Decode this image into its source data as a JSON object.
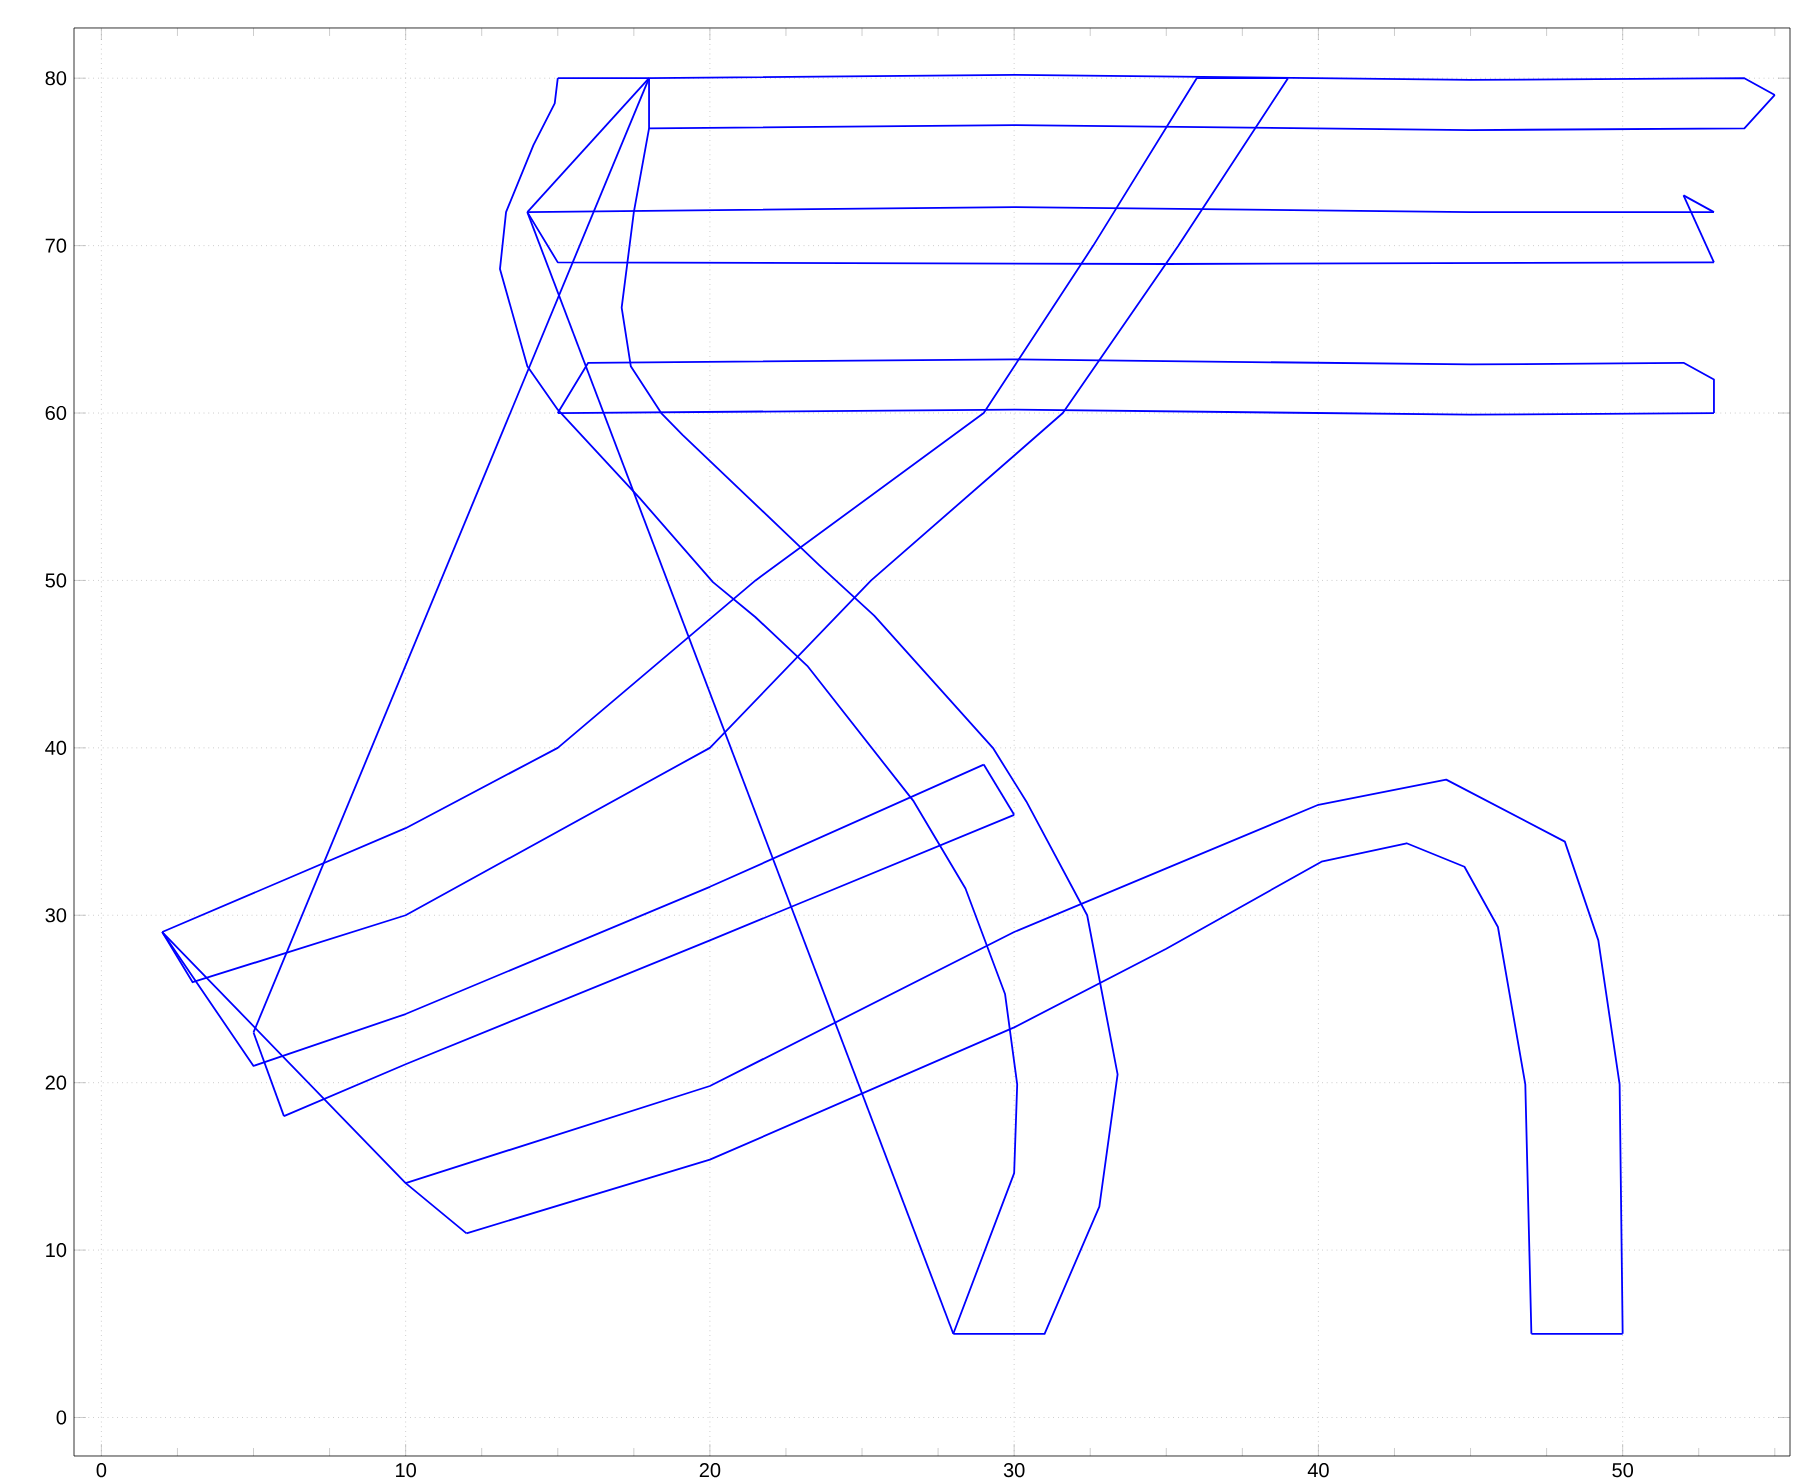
{
  "chart_data": {
    "type": "line",
    "color": "#0000ff",
    "marker": "none",
    "line_style": "solid",
    "grid": true,
    "xlim": [
      -0.9,
      55.5
    ],
    "ylim": [
      -2.3,
      83
    ],
    "xticks": [
      0,
      {
        "value": 2.5,
        "label": null
      },
      {
        "value": 5,
        "label": null
      },
      {
        "value": 7.5,
        "label": null
      },
      10,
      {
        "value": 12.5,
        "label": null
      },
      {
        "value": 15,
        "label": null
      },
      {
        "value": 17.5,
        "label": null
      },
      20,
      {
        "value": 22.5,
        "label": null
      },
      {
        "value": 25,
        "label": null
      },
      {
        "value": 27.5,
        "label": null
      },
      30,
      {
        "value": 32.5,
        "label": null
      },
      {
        "value": 35,
        "label": null
      },
      {
        "value": 37.5,
        "label": null
      },
      40,
      {
        "value": 42.5,
        "label": null
      },
      {
        "value": 45,
        "label": null
      },
      {
        "value": 47.5,
        "label": null
      },
      50,
      {
        "value": 52.5,
        "label": null
      },
      {
        "value": 55,
        "label": null
      }
    ],
    "yticks": [
      0,
      10,
      20,
      30,
      40,
      50,
      60,
      70,
      80
    ],
    "series": [
      {
        "x": [
          15,
          18,
          30,
          45,
          54,
          55
        ],
        "values": [
          80,
          80,
          80.2,
          79.9,
          80,
          79
        ]
      },
      {
        "x": [
          18,
          18,
          30,
          45,
          54,
          55
        ],
        "values": [
          80,
          77,
          77.2,
          76.9,
          77,
          79
        ]
      },
      {
        "x": [
          28,
          30.0,
          30.1,
          29.7,
          28.4,
          26.7,
          23.2,
          21.5,
          20.1,
          17.7,
          15.0,
          14.0,
          13.1,
          13.3,
          14.2,
          14.9,
          15
        ],
        "values": [
          5,
          14.6,
          19.9,
          25.3,
          31.6,
          36.8,
          44.9,
          47.8,
          49.9,
          54.9,
          60.2,
          62.8,
          68.6,
          72,
          76,
          78.5,
          80
        ]
      },
      {
        "x": [
          28,
          31,
          32.8,
          33.4,
          32.4,
          30.4,
          29.3,
          25.4,
          23.6,
          19.1,
          18.4,
          17.4,
          17.1,
          17.5,
          18
        ],
        "values": [
          5,
          5,
          12.6,
          20.5,
          30,
          36.8,
          40,
          47.9,
          50.9,
          58.7,
          60,
          62.8,
          66.3,
          72,
          77
        ]
      },
      {
        "x": [
          14,
          30,
          45,
          53
        ],
        "values": [
          72,
          72.3,
          72.0,
          72
        ]
      },
      {
        "x": [
          52,
          53
        ],
        "values": [
          73,
          72
        ]
      },
      {
        "x": [
          52,
          53
        ],
        "values": [
          73,
          69
        ]
      },
      {
        "x": [
          14,
          15,
          35,
          53
        ],
        "values": [
          72,
          69,
          68.9,
          69
        ]
      },
      {
        "x": [
          14,
          18
        ],
        "values": [
          72,
          80
        ]
      },
      {
        "x": [
          14,
          28
        ],
        "values": [
          72,
          5
        ]
      },
      {
        "x": [
          15,
          16,
          30,
          45,
          52,
          53,
          53
        ],
        "values": [
          60,
          63,
          63.2,
          62.9,
          63,
          62,
          60
        ]
      },
      {
        "x": [
          15,
          30,
          45,
          53
        ],
        "values": [
          60,
          60.2,
          59.9,
          60
        ]
      },
      {
        "x": [
          5,
          18
        ],
        "values": [
          23,
          80
        ]
      },
      {
        "x": [
          5,
          6
        ],
        "values": [
          23,
          18
        ]
      },
      {
        "x": [
          6,
          10,
          20,
          30
        ],
        "values": [
          18,
          21.1,
          28.5,
          36
        ]
      },
      {
        "x": [
          29,
          30
        ],
        "values": [
          39,
          36
        ]
      },
      {
        "x": [
          2,
          5,
          10,
          20,
          29
        ],
        "values": [
          29,
          21,
          24.1,
          31.7,
          39
        ]
      },
      {
        "x": [
          2,
          3,
          10,
          20,
          25.3,
          31.6,
          35.4,
          39
        ],
        "values": [
          29,
          26,
          30,
          40,
          50,
          60,
          70,
          80
        ]
      },
      {
        "x": [
          2,
          10,
          15,
          21.5,
          29,
          32.6,
          36,
          39
        ],
        "values": [
          29,
          35.2,
          40,
          50,
          60,
          70,
          80,
          80
        ]
      },
      {
        "x": [
          2,
          10,
          12
        ],
        "values": [
          29,
          14,
          11
        ]
      },
      {
        "x": [
          10,
          20,
          30,
          35,
          40,
          44.2,
          48.1,
          49.2,
          49.9,
          50
        ],
        "values": [
          14,
          19.8,
          29,
          32.8,
          36.6,
          38.1,
          34.4,
          28.5,
          19.9,
          5
        ]
      },
      {
        "x": [
          47,
          50
        ],
        "values": [
          5,
          5
        ]
      },
      {
        "x": [
          12,
          20,
          30,
          35,
          40.1,
          42.9,
          44.8,
          45.9,
          46.8,
          47
        ],
        "values": [
          11,
          15.4,
          23.3,
          28,
          33.2,
          34.3,
          32.9,
          29.3,
          19.9,
          5
        ]
      }
    ]
  }
}
